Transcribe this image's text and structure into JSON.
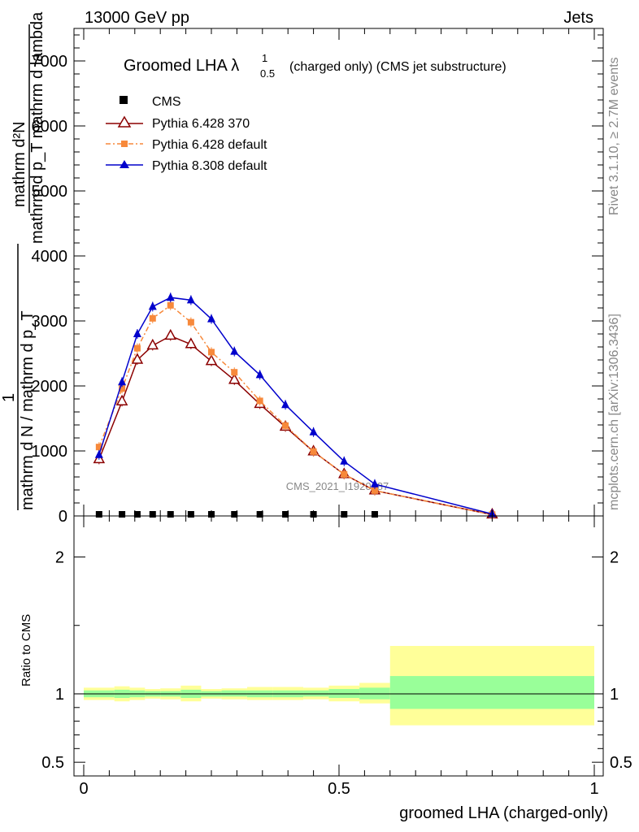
{
  "header": {
    "energy_label": "13000 GeV pp",
    "category_label": "Jets"
  },
  "side_text": {
    "rivet": "Rivet 3.1.10, ≥ 2.7M events",
    "mcplots": "mcplots.cern.ch [arXiv:1306.3436]"
  },
  "watermark": "CMS_2021_I1920187",
  "colors": {
    "cms": "#000000",
    "pythia6_370": "#8b0000",
    "pythia6_default": "#f7893b",
    "pythia8_default": "#0000cc",
    "band_inner": "#99ff99",
    "band_outer": "#ffff99"
  },
  "chart_data": [
    {
      "type": "line",
      "title": "Groomed LHA λ₁₀.₅ (charged only) (CMS jet substructure)",
      "title_main": "Groomed LHA λ",
      "title_sup": "1",
      "title_sub": "0.5",
      "title_rest": "(charged only) (CMS jet substructure)",
      "ylabel_top": "mathrm d²N",
      "ylabel_top2": "mathrm d p_T mathrm d lambda",
      "ylabel_one": "1",
      "ylabel_bottom": "mathrm d N / mathrm d p_T",
      "ylim": [
        0,
        7500
      ],
      "xlim": [
        -0.02,
        1.0
      ],
      "yticks": [
        {
          "v": 0,
          "label": "0"
        },
        {
          "v": 1000,
          "label": "1000"
        },
        {
          "v": 2000,
          "label": "2000"
        },
        {
          "v": 3000,
          "label": "3000"
        },
        {
          "v": 4000,
          "label": "4000"
        },
        {
          "v": 5000,
          "label": "5000"
        },
        {
          "v": 6000,
          "label": "6000"
        },
        {
          "v": 7000,
          "label": "7000"
        }
      ],
      "legend": {
        "cms": "CMS",
        "p6_370": "Pythia 6.428 370",
        "p6_def": "Pythia 6.428 default",
        "p8_def": "Pythia 8.308 default"
      },
      "x": [
        0.03,
        0.075,
        0.105,
        0.135,
        0.17,
        0.21,
        0.25,
        0.295,
        0.345,
        0.395,
        0.45,
        0.51,
        0.57,
        0.8
      ],
      "series": [
        {
          "name": "CMS",
          "key": "cms",
          "values": [
            0,
            0,
            0,
            0,
            0,
            0,
            0,
            0,
            0,
            0,
            0,
            0,
            0,
            null
          ]
        },
        {
          "name": "Pythia 6.428 370",
          "key": "p6_370",
          "values": [
            870,
            1760,
            2400,
            2620,
            2770,
            2640,
            2380,
            2090,
            1720,
            1370,
            990,
            640,
            390,
            20
          ]
        },
        {
          "name": "Pythia 6.428 default",
          "key": "p6_def",
          "values": [
            1060,
            1960,
            2580,
            3040,
            3240,
            2980,
            2520,
            2210,
            1770,
            1390,
            990,
            640,
            390,
            20
          ]
        },
        {
          "name": "Pythia 8.308 default",
          "key": "p8_def",
          "values": [
            940,
            2060,
            2800,
            3220,
            3360,
            3320,
            3030,
            2530,
            2170,
            1710,
            1290,
            840,
            490,
            30
          ]
        }
      ]
    },
    {
      "type": "area",
      "ylabel": "Ratio to CMS",
      "xlabel": "groomed LHA (charged-only)",
      "ylim": [
        0.4,
        2.3
      ],
      "xlim": [
        -0.02,
        1.0
      ],
      "yticks": [
        {
          "v": 0.5,
          "label": "0.5"
        },
        {
          "v": 1,
          "label": "1"
        },
        {
          "v": 2,
          "label": "2"
        }
      ],
      "xticks": [
        {
          "v": 0,
          "label": "0"
        },
        {
          "v": 0.5,
          "label": "0.5"
        },
        {
          "v": 1,
          "label": "1"
        }
      ],
      "bins": [
        {
          "lo": 0.0,
          "hi": 0.06,
          "inner": [
            0.975,
            1.025
          ],
          "outer": [
            0.955,
            1.045
          ]
        },
        {
          "lo": 0.06,
          "hi": 0.09,
          "inner": [
            0.97,
            1.03
          ],
          "outer": [
            0.945,
            1.055
          ]
        },
        {
          "lo": 0.09,
          "hi": 0.12,
          "inner": [
            0.975,
            1.025
          ],
          "outer": [
            0.955,
            1.045
          ]
        },
        {
          "lo": 0.12,
          "hi": 0.15,
          "inner": [
            0.98,
            1.02
          ],
          "outer": [
            0.965,
            1.035
          ]
        },
        {
          "lo": 0.15,
          "hi": 0.19,
          "inner": [
            0.98,
            1.02
          ],
          "outer": [
            0.96,
            1.04
          ]
        },
        {
          "lo": 0.19,
          "hi": 0.23,
          "inner": [
            0.97,
            1.03
          ],
          "outer": [
            0.945,
            1.06
          ]
        },
        {
          "lo": 0.23,
          "hi": 0.27,
          "inner": [
            0.98,
            1.02
          ],
          "outer": [
            0.965,
            1.035
          ]
        },
        {
          "lo": 0.27,
          "hi": 0.32,
          "inner": [
            0.98,
            1.025
          ],
          "outer": [
            0.96,
            1.04
          ]
        },
        {
          "lo": 0.32,
          "hi": 0.37,
          "inner": [
            0.975,
            1.025
          ],
          "outer": [
            0.955,
            1.05
          ]
        },
        {
          "lo": 0.37,
          "hi": 0.43,
          "inner": [
            0.975,
            1.025
          ],
          "outer": [
            0.955,
            1.05
          ]
        },
        {
          "lo": 0.43,
          "hi": 0.48,
          "inner": [
            0.98,
            1.025
          ],
          "outer": [
            0.96,
            1.045
          ]
        },
        {
          "lo": 0.48,
          "hi": 0.54,
          "inner": [
            0.97,
            1.035
          ],
          "outer": [
            0.945,
            1.06
          ]
        },
        {
          "lo": 0.54,
          "hi": 0.6,
          "inner": [
            0.96,
            1.045
          ],
          "outer": [
            0.93,
            1.08
          ]
        },
        {
          "lo": 0.6,
          "hi": 1.0,
          "inner": [
            0.89,
            1.13
          ],
          "outer": [
            0.77,
            1.35
          ]
        }
      ],
      "reference_line": 1
    }
  ]
}
